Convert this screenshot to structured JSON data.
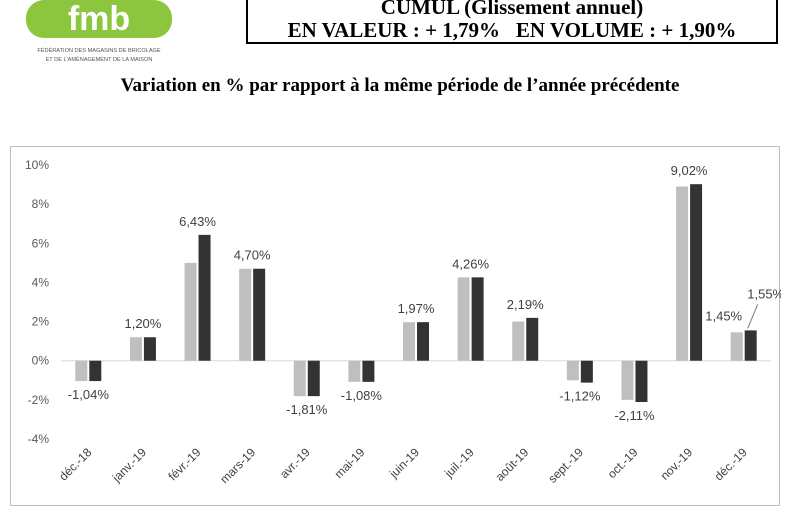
{
  "logo": {
    "text": "fmb",
    "org_line1": "FÉDÉRATION DES MAGASINS DE BRICOLAGE",
    "org_line2": "ET DE L'AMÉNAGEMENT DE LA MAISON"
  },
  "header": {
    "cumul_title": "CUMUL (Glissement annuel)",
    "valeur_label": "EN VALEUR : + 1,79%",
    "volume_label": "EN VOLUME : + 1,90%"
  },
  "subtitle": "Variation en % par rapport à la même période de l’année précédente",
  "colors": {
    "series_light": "#bfbfbf",
    "series_dark": "#333333",
    "grid": "#d9d9d9"
  },
  "chart_data": {
    "type": "bar",
    "categories": [
      "déc.-18",
      "janv.-19",
      "févr.-19",
      "mars-19",
      "avr.-19",
      "mai-19",
      "juin-19",
      "juil.-19",
      "août-19",
      "sept.-19",
      "oct.-19",
      "nov.-19",
      "déc.-19"
    ],
    "series": [
      {
        "values": [
          -1.04,
          1.2,
          5.0,
          4.7,
          -1.81,
          -1.08,
          1.97,
          4.26,
          2.0,
          -1.0,
          -2.0,
          8.9,
          1.45
        ]
      },
      {
        "values": [
          -1.04,
          1.2,
          6.43,
          4.7,
          -1.81,
          -1.08,
          1.97,
          4.26,
          2.19,
          -1.12,
          -2.11,
          9.02,
          1.55
        ]
      }
    ],
    "data_labels": [
      "-1,04%",
      "1,20%",
      "6,43%",
      "4,70%",
      "-1,81%",
      "-1,08%",
      "1,97%",
      "4,26%",
      "2,19%",
      "-1,12%",
      "-2,11%",
      "9,02%",
      "1,55%"
    ],
    "extra_label": "1,45%",
    "yticks": [
      "10%",
      "8%",
      "6%",
      "4%",
      "2%",
      "0%",
      "-2%",
      "-4%"
    ],
    "ylim": [
      -4,
      10
    ],
    "grid": false,
    "legend": "none"
  }
}
